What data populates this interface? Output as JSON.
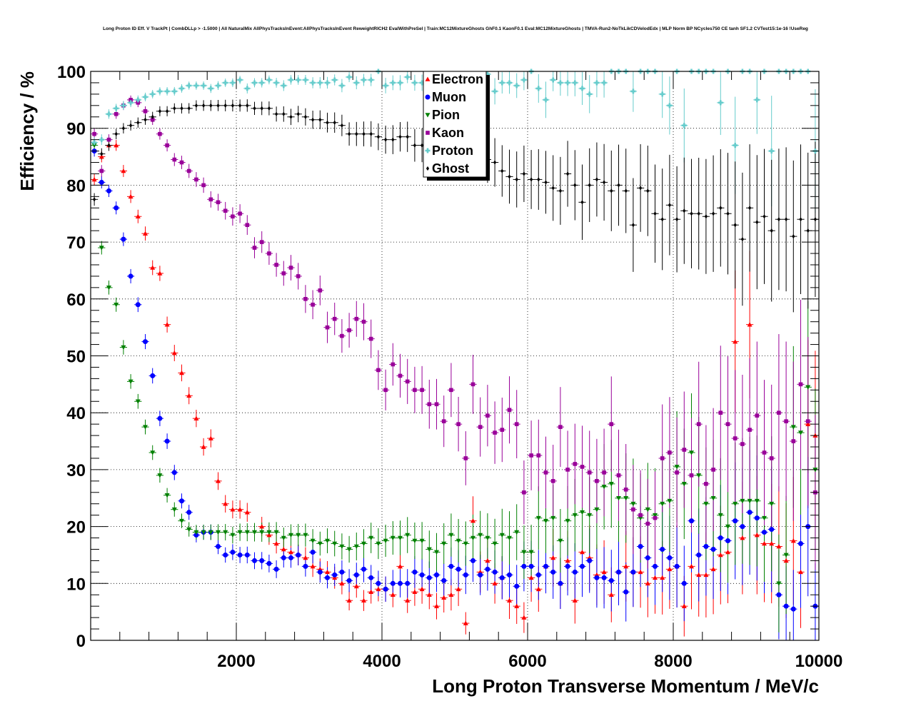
{
  "chart_data": {
    "type": "scatter",
    "title": "Long Proton ID Eff. V TrackPt | CombDLLp > -1.5000 | All NaturalMix AllPhysTracksInEvent:AllPhysTracksInEvent ReweightRICH2 EvalWithPreSel | Train:MC12MixtureGhosts GhF0.1 KaonF0.1 Eval:MC12MixtureGhosts | TMVA-Run2-NoTkLikCDVelodEdx | MLP Norm BP NCycles750 CE tanh SF1.2 CVTest15:1e-16 !UseReg",
    "xlabel": "Long Proton Transverse Momentum / MeV/c",
    "ylabel": "Efficiency / %",
    "xlim": [
      0,
      10000
    ],
    "ylim": [
      0,
      100
    ],
    "xticks": [
      "2000",
      "4000",
      "6000",
      "8000",
      "10000"
    ],
    "yticks": [
      "0",
      "10",
      "20",
      "30",
      "40",
      "50",
      "60",
      "70",
      "80",
      "90",
      "100"
    ],
    "grid": true,
    "legend_position": "top-center",
    "x": [
      50,
      150,
      250,
      350,
      450,
      550,
      650,
      750,
      850,
      950,
      1050,
      1150,
      1250,
      1350,
      1450,
      1550,
      1650,
      1750,
      1850,
      1950,
      2050,
      2150,
      2250,
      2350,
      2450,
      2550,
      2650,
      2750,
      2850,
      2950,
      3050,
      3150,
      3250,
      3350,
      3450,
      3550,
      3650,
      3750,
      3850,
      3950,
      4050,
      4150,
      4250,
      4350,
      4450,
      4550,
      4650,
      4750,
      4850,
      4950,
      5050,
      5150,
      5250,
      5350,
      5450,
      5550,
      5650,
      5750,
      5850,
      5950,
      6050,
      6150,
      6250,
      6350,
      6450,
      6550,
      6650,
      6750,
      6850,
      6950,
      7050,
      7150,
      7250,
      7350,
      7450,
      7550,
      7650,
      7750,
      7850,
      7950,
      8050,
      8150,
      8250,
      8350,
      8450,
      8550,
      8650,
      8750,
      8850,
      8950,
      9050,
      9150,
      9250,
      9350,
      9450,
      9550,
      9650,
      9750,
      9850,
      9950
    ],
    "series": [
      {
        "name": "Electron",
        "color": "#ff0000",
        "marker": "triangle-up",
        "values": [
          81,
          85,
          87,
          87,
          82.5,
          78,
          74.5,
          71.5,
          65.5,
          64.5,
          55.5,
          50.5,
          47,
          43,
          39,
          34,
          35.5,
          28,
          24,
          23,
          23,
          22.5,
          null,
          20,
          18.5,
          17,
          16,
          15.5,
          15,
          14.5,
          13,
          12.5,
          12,
          11,
          10,
          7,
          9.5,
          7,
          8.5,
          9,
          9,
          8,
          13,
          7,
          8.5,
          9,
          8,
          6,
          7.5,
          8,
          9,
          3,
          21,
          12,
          14,
          10,
          11,
          7,
          6,
          4,
          11,
          9,
          13,
          14.5,
          10,
          14,
          7,
          15.5,
          14.5,
          11.5,
          12,
          8,
          12,
          13,
          12,
          12,
          10,
          11,
          11,
          12.5,
          13,
          6,
          13,
          11.5,
          11.5,
          12.5,
          15,
          15.5,
          52.5,
          18,
          55.5,
          18.5,
          17,
          17,
          16.5,
          14,
          17.5,
          12,
          38,
          36
        ]
      },
      {
        "name": "Muon",
        "color": "#0000ff",
        "marker": "circle",
        "values": [
          86,
          80.5,
          79,
          76,
          70.5,
          64,
          59,
          52.5,
          46.5,
          39,
          35,
          29.5,
          24.5,
          22.5,
          18.5,
          19,
          19,
          16.5,
          15,
          15.5,
          15,
          15,
          14,
          14,
          13.5,
          12.5,
          14.5,
          14.5,
          15,
          13,
          15.5,
          12,
          11,
          11.5,
          12,
          10.5,
          11.5,
          12.5,
          11,
          10,
          9,
          10,
          10,
          10,
          12,
          11.5,
          11,
          11.5,
          10.5,
          13,
          12.5,
          11.5,
          14,
          11.5,
          12.5,
          12,
          11,
          11.5,
          9.5,
          13,
          13,
          11.5,
          13,
          12,
          10,
          13,
          12,
          13,
          14,
          11,
          11,
          10.5,
          12,
          8.5,
          12,
          16.5,
          14.5,
          13,
          16,
          14.5,
          13,
          10,
          21,
          15,
          16.5,
          16,
          18,
          17.5,
          21,
          20,
          22.5,
          21.5,
          19,
          19.5,
          8,
          6,
          5.5,
          17,
          20,
          6
        ]
      },
      {
        "name": "Pion",
        "color": "#008000",
        "marker": "triangle-down",
        "values": [
          87,
          69,
          62,
          59,
          51.5,
          45.5,
          42,
          37.5,
          33,
          29,
          25.5,
          23,
          21,
          19.5,
          19,
          19,
          19,
          19,
          19,
          18.5,
          19,
          19,
          19,
          19,
          19,
          19,
          18,
          18.5,
          18.5,
          18.5,
          17.5,
          17,
          17.5,
          17,
          16.5,
          16,
          16.5,
          17,
          18,
          17,
          17.5,
          18,
          18,
          18.5,
          17.5,
          17.5,
          16,
          15.5,
          17,
          18.5,
          17.5,
          17,
          18,
          18.5,
          18,
          17,
          18.5,
          18,
          19,
          15.5,
          15.5,
          21.5,
          21,
          21.5,
          17.5,
          21,
          22,
          22.5,
          22,
          23,
          27,
          27.5,
          25,
          25,
          24,
          21.5,
          23,
          22,
          24,
          24.5,
          30.5,
          27.5,
          33,
          29,
          24,
          25,
          22,
          20,
          24,
          24.5,
          24.5,
          24.5,
          21.5,
          24,
          10,
          15,
          37.5,
          36.5,
          44.5,
          30
        ]
      },
      {
        "name": "Kaon",
        "color": "#990099",
        "marker": "square",
        "values": [
          89,
          82.5,
          88,
          92.5,
          94,
          95,
          94.5,
          93,
          91.5,
          89,
          87,
          84.5,
          84,
          82.5,
          81,
          80,
          77.5,
          77,
          75.5,
          74.5,
          75,
          73,
          69,
          70,
          68,
          66,
          64.5,
          65.5,
          64,
          60,
          59,
          61.5,
          55,
          56.5,
          53.5,
          54.5,
          56.5,
          56,
          53,
          47.5,
          44,
          48.5,
          46.5,
          45.5,
          44,
          44,
          41.5,
          41.5,
          38.5,
          44,
          38,
          32,
          45,
          37.5,
          39.5,
          36.5,
          37,
          40.5,
          38,
          26,
          32.5,
          32.5,
          29.5,
          28,
          37.5,
          30,
          31,
          30.5,
          29.5,
          28,
          29.5,
          38,
          29,
          26.5,
          23,
          22,
          20.5,
          21.5,
          32,
          33,
          29.5,
          33.5,
          29,
          38,
          27.5,
          30,
          40,
          38,
          35.5,
          34.5,
          37,
          39.5,
          33,
          32,
          40,
          38.5,
          35,
          45,
          38.5,
          26
        ]
      },
      {
        "name": "Proton",
        "color": "#66cccc",
        "marker": "plus",
        "values": [
          87.5,
          88,
          92.5,
          93.5,
          94,
          94.5,
          95,
          95.5,
          96,
          96.5,
          96.5,
          96.5,
          97,
          97.5,
          97.5,
          97.5,
          97,
          97.5,
          98,
          98,
          98.5,
          97,
          98,
          98,
          98.5,
          98,
          97.5,
          98.5,
          98.5,
          98.5,
          98,
          98,
          98,
          98.5,
          97.5,
          99,
          98,
          98.5,
          98.5,
          100,
          97.5,
          98,
          98,
          99,
          98,
          98,
          99,
          98.5,
          99,
          94.5,
          98.5,
          99,
          99.5,
          99,
          99.5,
          96.5,
          98,
          98,
          97.5,
          98.5,
          100,
          97,
          95,
          98.5,
          98,
          98,
          98,
          97,
          96,
          98,
          98,
          100,
          100,
          100,
          96.5,
          100,
          100,
          100,
          96,
          94,
          100,
          90.5,
          100,
          100,
          100,
          100,
          94.5,
          100,
          87,
          100,
          100,
          95,
          100,
          86,
          100,
          100,
          100,
          100,
          100,
          86
        ]
      },
      {
        "name": "Ghost",
        "color": "#000000",
        "marker": "diamond",
        "values": [
          77.5,
          85.5,
          87,
          89,
          90,
          90.5,
          91,
          91.5,
          92,
          93,
          93,
          93.5,
          93.5,
          93.5,
          94,
          94,
          94,
          94,
          94,
          94,
          94,
          94,
          93.5,
          93.5,
          93.5,
          92.5,
          92.5,
          92,
          92.5,
          92,
          91.5,
          91.5,
          91,
          91,
          90.5,
          89,
          89,
          89,
          89,
          88.5,
          88,
          88,
          88.5,
          88.5,
          87,
          87,
          87,
          86.5,
          86,
          85.5,
          85,
          85,
          85,
          85,
          84.5,
          84,
          82.5,
          81.5,
          81,
          82,
          81,
          81,
          80.5,
          79.5,
          79,
          82,
          80,
          77,
          80,
          81,
          80.5,
          79,
          80,
          79,
          73,
          79.5,
          79,
          75,
          74,
          76.5,
          74,
          75.5,
          75,
          75,
          74.5,
          75,
          76,
          75,
          73,
          70.5,
          76,
          73.5,
          74.5,
          72,
          74,
          74,
          71,
          74,
          72,
          74
        ]
      }
    ]
  }
}
